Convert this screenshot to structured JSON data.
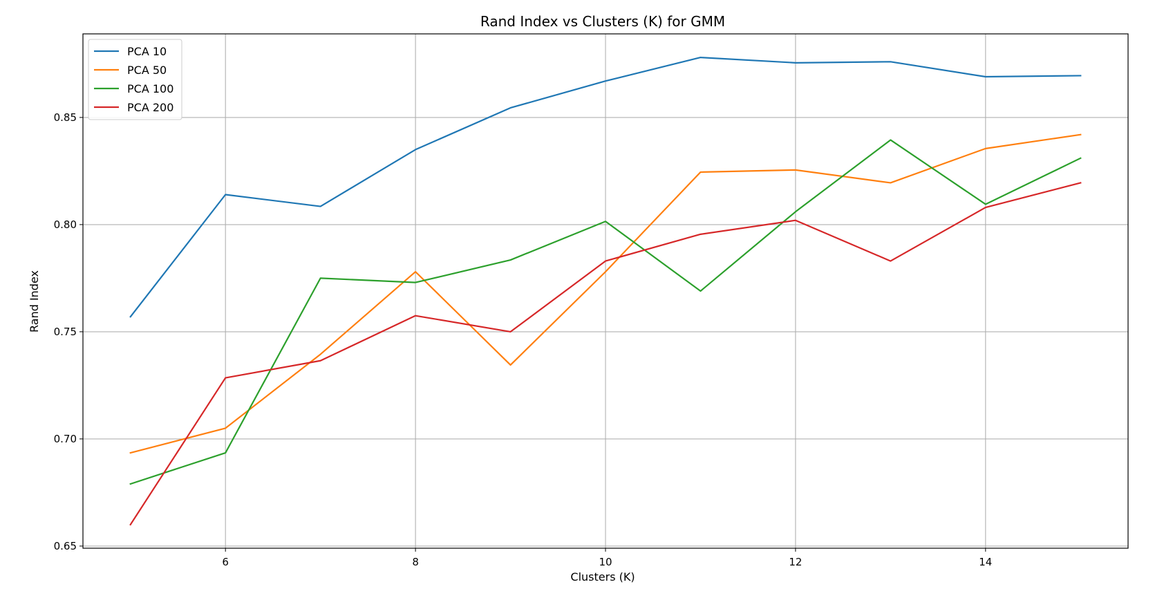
{
  "chart_data": {
    "type": "line",
    "title": "Rand Index vs Clusters (K) for GMM",
    "xlabel": "Clusters (K)",
    "ylabel": "Rand Index",
    "x": [
      5,
      6,
      7,
      8,
      9,
      10,
      11,
      12,
      13,
      14,
      15
    ],
    "xlim": [
      4.5,
      15.5
    ],
    "ylim": [
      0.649,
      0.889
    ],
    "xticks": [
      6,
      8,
      10,
      12,
      14
    ],
    "yticks": [
      0.65,
      0.7,
      0.75,
      0.8,
      0.85
    ],
    "ytick_labels": [
      "0.65",
      "0.70",
      "0.75",
      "0.80",
      "0.85"
    ],
    "grid": true,
    "legend_position": "top-left",
    "series": [
      {
        "name": "PCA 10",
        "color": "#1f77b4",
        "values": [
          0.757,
          0.814,
          0.8085,
          0.835,
          0.8545,
          0.867,
          0.878,
          0.8755,
          0.876,
          0.869,
          0.8695
        ]
      },
      {
        "name": "PCA 50",
        "color": "#ff7f0e",
        "values": [
          0.6935,
          0.705,
          0.7395,
          0.778,
          0.7345,
          0.778,
          0.8245,
          0.8255,
          0.8195,
          0.8355,
          0.842
        ]
      },
      {
        "name": "PCA 100",
        "color": "#2ca02c",
        "values": [
          0.679,
          0.6935,
          0.775,
          0.773,
          0.7835,
          0.8015,
          0.769,
          0.806,
          0.8395,
          0.8095,
          0.831
        ]
      },
      {
        "name": "PCA 200",
        "color": "#d62728",
        "values": [
          0.66,
          0.7285,
          0.7365,
          0.7575,
          0.75,
          0.783,
          0.7955,
          0.802,
          0.783,
          0.808,
          0.8195
        ]
      }
    ]
  }
}
